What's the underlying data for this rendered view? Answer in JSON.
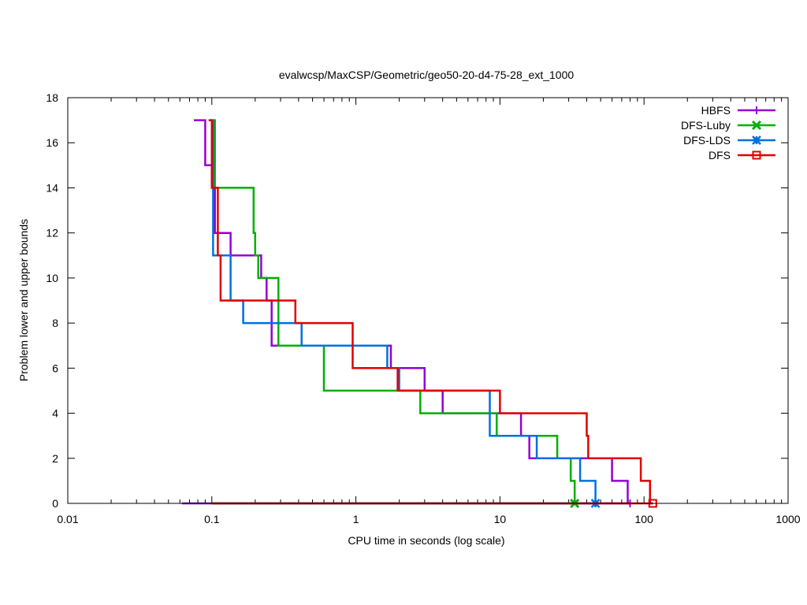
{
  "chart_data": {
    "type": "line",
    "title": "evalwcsp/MaxCSP/Geometric/geo50-20-d4-75-28_ext_1000",
    "xlabel": "CPU time in seconds (log scale)",
    "ylabel": "Problem lower and upper bounds",
    "xscale": "log",
    "xlim": [
      0.01,
      1000
    ],
    "ylim": [
      0,
      18
    ],
    "x_ticks": [
      0.01,
      0.1,
      1,
      10,
      100,
      1000
    ],
    "x_tick_labels": [
      "0.01",
      "0.1",
      "1",
      "10",
      "100",
      "1000"
    ],
    "y_ticks": [
      0,
      2,
      4,
      6,
      8,
      10,
      12,
      14,
      16,
      18
    ],
    "y_tick_labels": [
      "0",
      "2",
      "4",
      "6",
      "8",
      "10",
      "12",
      "14",
      "16",
      "18"
    ],
    "legend_position": "top-right",
    "series": [
      {
        "name": "HBFS",
        "color": "#9400d3",
        "marker": "plus",
        "upper": [
          [
            0.075,
            17
          ],
          [
            0.09,
            17
          ],
          [
            0.09,
            15
          ],
          [
            0.1,
            15
          ],
          [
            0.1,
            14
          ],
          [
            0.105,
            14
          ],
          [
            0.105,
            12
          ],
          [
            0.135,
            12
          ],
          [
            0.135,
            11
          ],
          [
            0.22,
            11
          ],
          [
            0.22,
            10
          ],
          [
            0.24,
            10
          ],
          [
            0.24,
            9
          ],
          [
            0.26,
            9
          ],
          [
            0.26,
            7
          ],
          [
            0.3,
            7
          ],
          [
            0.3,
            7
          ],
          [
            1.75,
            7
          ],
          [
            1.75,
            6
          ],
          [
            3.0,
            6
          ],
          [
            3.0,
            5
          ],
          [
            4.0,
            5
          ],
          [
            4.0,
            4
          ],
          [
            10.0,
            4
          ],
          [
            10.0,
            4
          ],
          [
            14.0,
            4
          ],
          [
            14.0,
            3
          ],
          [
            16.0,
            3
          ],
          [
            16.0,
            2
          ],
          [
            60.0,
            2
          ],
          [
            60.0,
            1
          ],
          [
            77.0,
            1
          ],
          [
            77.0,
            0
          ],
          [
            80.0,
            0
          ]
        ],
        "lower": [
          [
            0.062,
            0
          ],
          [
            80.0,
            0
          ]
        ],
        "end": [
          80.0,
          0
        ]
      },
      {
        "name": "DFS-Luby",
        "color": "#00b000",
        "marker": "x",
        "upper": [
          [
            0.1,
            17
          ],
          [
            0.105,
            17
          ],
          [
            0.105,
            14
          ],
          [
            0.195,
            14
          ],
          [
            0.195,
            12
          ],
          [
            0.2,
            12
          ],
          [
            0.2,
            11
          ],
          [
            0.21,
            11
          ],
          [
            0.21,
            10
          ],
          [
            0.29,
            10
          ],
          [
            0.29,
            7
          ],
          [
            0.6,
            7
          ],
          [
            0.6,
            5
          ],
          [
            2.8,
            5
          ],
          [
            2.8,
            4
          ],
          [
            9.5,
            4
          ],
          [
            9.5,
            3
          ],
          [
            25.0,
            3
          ],
          [
            25.0,
            2
          ],
          [
            31.0,
            2
          ],
          [
            31.0,
            1
          ],
          [
            33.0,
            1
          ],
          [
            33.0,
            0
          ]
        ],
        "lower": [
          [
            0.1,
            0
          ],
          [
            33.0,
            0
          ]
        ],
        "end": [
          33.0,
          0
        ]
      },
      {
        "name": "DFS-LDS",
        "color": "#0070e0",
        "marker": "star",
        "upper": [
          [
            0.098,
            17
          ],
          [
            0.102,
            17
          ],
          [
            0.102,
            11
          ],
          [
            0.135,
            11
          ],
          [
            0.135,
            9
          ],
          [
            0.165,
            9
          ],
          [
            0.165,
            8
          ],
          [
            0.42,
            8
          ],
          [
            0.42,
            7
          ],
          [
            1.65,
            7
          ],
          [
            1.65,
            6
          ],
          [
            2.0,
            6
          ],
          [
            2.0,
            5
          ],
          [
            8.5,
            5
          ],
          [
            8.5,
            3
          ],
          [
            18.0,
            3
          ],
          [
            18.0,
            2
          ],
          [
            36.0,
            2
          ],
          [
            36.0,
            1
          ],
          [
            46.0,
            1
          ],
          [
            46.0,
            0
          ]
        ],
        "lower": [
          [
            0.1,
            0
          ],
          [
            46.0,
            0
          ]
        ],
        "end": [
          46.0,
          0
        ]
      },
      {
        "name": "DFS",
        "color": "#e00000",
        "marker": "square",
        "upper": [
          [
            0.095,
            17
          ],
          [
            0.1,
            17
          ],
          [
            0.1,
            14
          ],
          [
            0.1,
            14
          ],
          [
            0.11,
            14
          ],
          [
            0.11,
            11
          ],
          [
            0.115,
            11
          ],
          [
            0.115,
            9
          ],
          [
            0.38,
            9
          ],
          [
            0.38,
            8
          ],
          [
            0.95,
            8
          ],
          [
            0.95,
            6
          ],
          [
            1.95,
            6
          ],
          [
            1.95,
            5
          ],
          [
            10.0,
            5
          ],
          [
            10.0,
            4
          ],
          [
            40.0,
            4
          ],
          [
            40.0,
            3
          ],
          [
            41.0,
            3
          ],
          [
            41.0,
            2
          ],
          [
            95.0,
            2
          ],
          [
            95.0,
            1
          ],
          [
            110.0,
            1
          ],
          [
            110.0,
            0
          ],
          [
            115.0,
            0
          ]
        ],
        "lower": [
          [
            0.1,
            0
          ],
          [
            115.0,
            0
          ]
        ],
        "end": [
          115.0,
          0
        ]
      }
    ]
  }
}
